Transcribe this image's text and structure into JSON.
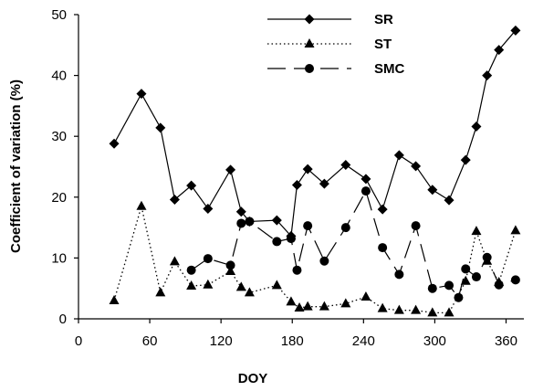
{
  "chart_data": {
    "type": "line",
    "xlabel": "DOY",
    "ylabel": "Coefficient of variation (%)",
    "xlim": [
      0,
      375
    ],
    "ylim": [
      0,
      50
    ],
    "xticks": [
      0,
      60,
      120,
      180,
      240,
      300,
      360
    ],
    "yticks": [
      0,
      10,
      20,
      30,
      40,
      50
    ],
    "grid": false,
    "legend_position": "top-center",
    "series": [
      {
        "name": "SR",
        "line_style": "solid",
        "marker": "diamond",
        "color": "#000000",
        "points": [
          [
            30,
            28.8
          ],
          [
            53,
            37.0
          ],
          [
            69,
            31.4
          ],
          [
            81,
            19.6
          ],
          [
            95,
            21.9
          ],
          [
            109,
            18.1
          ],
          [
            128,
            24.5
          ],
          [
            137,
            17.6
          ],
          [
            144,
            16.0
          ],
          [
            167,
            16.2
          ],
          [
            179,
            13.6
          ],
          [
            184,
            22.0
          ],
          [
            193,
            24.6
          ],
          [
            207,
            22.2
          ],
          [
            225,
            25.3
          ],
          [
            242,
            23.0
          ],
          [
            256,
            18.0
          ],
          [
            270,
            26.9
          ],
          [
            284,
            25.1
          ],
          [
            298,
            21.2
          ],
          [
            312,
            19.5
          ],
          [
            326,
            26.1
          ],
          [
            335,
            31.6
          ],
          [
            344,
            40.0
          ],
          [
            354,
            44.2
          ],
          [
            368,
            47.4
          ]
        ]
      },
      {
        "name": "ST",
        "line_style": "dotted",
        "marker": "triangle",
        "color": "#000000",
        "points": [
          [
            30,
            3.0
          ],
          [
            53,
            18.5
          ],
          [
            69,
            4.3
          ],
          [
            81,
            9.4
          ],
          [
            95,
            5.4
          ],
          [
            109,
            5.6
          ],
          [
            128,
            7.8
          ],
          [
            137,
            5.2
          ],
          [
            144,
            4.3
          ],
          [
            167,
            5.5
          ],
          [
            179,
            2.8
          ],
          [
            186,
            1.8
          ],
          [
            193,
            2.0
          ],
          [
            207,
            2.0
          ],
          [
            225,
            2.5
          ],
          [
            242,
            3.6
          ],
          [
            256,
            1.7
          ],
          [
            270,
            1.4
          ],
          [
            284,
            1.4
          ],
          [
            298,
            1.0
          ],
          [
            312,
            1.0
          ],
          [
            326,
            6.2
          ],
          [
            335,
            14.4
          ],
          [
            344,
            9.5
          ],
          [
            354,
            6.0
          ],
          [
            368,
            14.5
          ]
        ]
      },
      {
        "name": "SMC",
        "line_style": "long-dash",
        "marker": "circle",
        "color": "#000000",
        "points": [
          [
            95,
            8.0
          ],
          [
            109,
            9.9
          ],
          [
            128,
            8.8
          ],
          [
            137,
            15.7
          ],
          [
            144,
            16.0
          ],
          [
            167,
            12.7
          ],
          [
            179,
            13.2
          ],
          [
            184,
            8.0
          ],
          [
            193,
            15.3
          ],
          [
            207,
            9.5
          ],
          [
            225,
            15.0
          ],
          [
            242,
            21.0
          ],
          [
            256,
            11.7
          ],
          [
            270,
            7.3
          ],
          [
            284,
            15.3
          ],
          [
            298,
            5.0
          ],
          [
            312,
            5.5
          ],
          [
            320,
            3.5
          ],
          [
            326,
            8.2
          ],
          [
            335,
            6.9
          ],
          [
            344,
            10.1
          ],
          [
            354,
            5.6
          ],
          [
            368,
            6.4
          ]
        ]
      }
    ]
  }
}
